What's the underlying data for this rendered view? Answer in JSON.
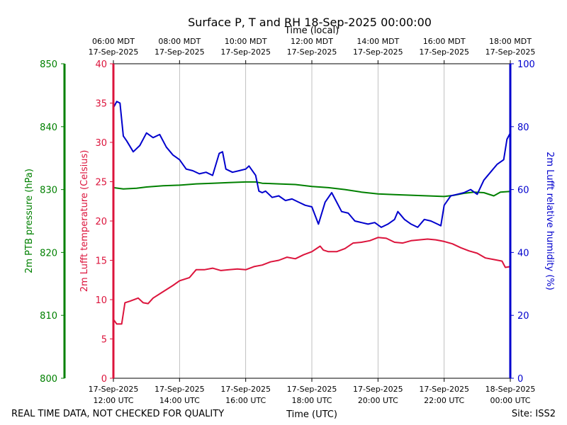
{
  "chart_data": {
    "type": "line",
    "title": "Surface P, T and RH 18-Sep-2025 00:00:00",
    "top_axis_label": "Time (local)",
    "bottom_axis_label": "Time (UTC)",
    "footer_left": "REAL TIME DATA, NOT CHECKED FOR QUALITY",
    "footer_right": "Site: ISS2",
    "x_range_hours_utc": [
      12,
      24
    ],
    "x_ticks": [
      {
        "hour": 12,
        "utc_date": "17-Sep-2025",
        "utc_time": "12:00 UTC",
        "local_time": "06:00 MDT",
        "local_date": "17-Sep-2025"
      },
      {
        "hour": 14,
        "utc_date": "17-Sep-2025",
        "utc_time": "14:00 UTC",
        "local_time": "08:00 MDT",
        "local_date": "17-Sep-2025"
      },
      {
        "hour": 16,
        "utc_date": "17-Sep-2025",
        "utc_time": "16:00 UTC",
        "local_time": "10:00 MDT",
        "local_date": "17-Sep-2025"
      },
      {
        "hour": 18,
        "utc_date": "17-Sep-2025",
        "utc_time": "18:00 UTC",
        "local_time": "12:00 MDT",
        "local_date": "17-Sep-2025"
      },
      {
        "hour": 20,
        "utc_date": "17-Sep-2025",
        "utc_time": "20:00 UTC",
        "local_time": "14:00 MDT",
        "local_date": "17-Sep-2025"
      },
      {
        "hour": 22,
        "utc_date": "17-Sep-2025",
        "utc_time": "22:00 UTC",
        "local_time": "16:00 MDT",
        "local_date": "17-Sep-2025"
      },
      {
        "hour": 24,
        "utc_date": "18-Sep-2025",
        "utc_time": "00:00 UTC",
        "local_time": "18:00 MDT",
        "local_date": "17-Sep-2025"
      }
    ],
    "axes": {
      "pressure": {
        "label": "2m PTB pressure (hPa)",
        "range": [
          800,
          850
        ],
        "ticks": [
          800,
          810,
          820,
          830,
          840,
          850
        ],
        "color": "#008000"
      },
      "temperature": {
        "label": "2m Lufft temperature (Celsius)",
        "range": [
          0,
          40
        ],
        "ticks": [
          0,
          5,
          10,
          15,
          20,
          25,
          30,
          35,
          40
        ],
        "color": "#dc143c"
      },
      "humidity": {
        "label": "2m Lufft relative humidity (%)",
        "range": [
          0,
          100
        ],
        "ticks": [
          0,
          20,
          40,
          60,
          80,
          100
        ],
        "color": "#0000cd"
      }
    },
    "series": [
      {
        "name": "2m PTB pressure",
        "axis": "pressure",
        "color": "#008000",
        "x": [
          12.0,
          12.3,
          12.7,
          13.0,
          13.5,
          14.0,
          14.5,
          15.0,
          15.5,
          16.0,
          16.3,
          16.5,
          17.0,
          17.5,
          18.0,
          18.5,
          19.0,
          19.5,
          20.0,
          20.5,
          21.0,
          21.5,
          22.0,
          22.3,
          22.6,
          22.9,
          23.2,
          23.5,
          23.7,
          24.0
        ],
        "values": [
          830.3,
          830.1,
          830.2,
          830.4,
          830.6,
          830.7,
          830.9,
          831.0,
          831.1,
          831.2,
          831.2,
          831.0,
          830.9,
          830.8,
          830.5,
          830.3,
          830.0,
          829.6,
          829.3,
          829.2,
          829.1,
          829.0,
          828.9,
          829.1,
          829.4,
          829.6,
          829.5,
          829.0,
          829.6,
          829.7
        ]
      },
      {
        "name": "2m Lufft temperature",
        "axis": "temperature",
        "color": "#dc143c",
        "x": [
          12.0,
          12.1,
          12.25,
          12.35,
          12.5,
          12.75,
          12.9,
          13.05,
          13.2,
          13.5,
          13.8,
          14.0,
          14.3,
          14.5,
          14.75,
          15.0,
          15.25,
          15.5,
          15.75,
          16.0,
          16.25,
          16.5,
          16.75,
          17.0,
          17.25,
          17.5,
          17.75,
          18.0,
          18.25,
          18.35,
          18.5,
          18.75,
          19.0,
          19.25,
          19.5,
          19.75,
          20.0,
          20.25,
          20.5,
          20.75,
          21.0,
          21.25,
          21.5,
          21.75,
          22.0,
          22.25,
          22.5,
          22.75,
          23.0,
          23.25,
          23.5,
          23.75,
          23.85,
          24.0
        ],
        "values": [
          7.5,
          6.9,
          6.9,
          9.6,
          9.8,
          10.2,
          9.6,
          9.5,
          10.2,
          11.0,
          11.8,
          12.4,
          12.8,
          13.8,
          13.8,
          14.0,
          13.7,
          13.8,
          13.9,
          13.8,
          14.2,
          14.4,
          14.8,
          15.0,
          15.4,
          15.2,
          15.7,
          16.1,
          16.8,
          16.3,
          16.1,
          16.1,
          16.5,
          17.2,
          17.3,
          17.5,
          17.9,
          17.8,
          17.3,
          17.2,
          17.5,
          17.6,
          17.7,
          17.6,
          17.4,
          17.1,
          16.6,
          16.2,
          15.9,
          15.3,
          15.1,
          14.9,
          14.1,
          14.2
        ]
      },
      {
        "name": "2m Lufft relative humidity",
        "axis": "humidity",
        "color": "#0000cd",
        "x": [
          12.0,
          12.1,
          12.2,
          12.3,
          12.4,
          12.6,
          12.8,
          13.0,
          13.2,
          13.4,
          13.6,
          13.8,
          14.0,
          14.2,
          14.4,
          14.6,
          14.8,
          15.0,
          15.2,
          15.3,
          15.4,
          15.6,
          15.8,
          16.0,
          16.1,
          16.3,
          16.4,
          16.5,
          16.6,
          16.8,
          17.0,
          17.2,
          17.4,
          17.6,
          17.8,
          18.0,
          18.2,
          18.4,
          18.6,
          18.7,
          18.9,
          19.1,
          19.3,
          19.5,
          19.7,
          19.9,
          20.1,
          20.3,
          20.5,
          20.6,
          20.8,
          21.0,
          21.2,
          21.4,
          21.6,
          21.8,
          21.9,
          22.0,
          22.2,
          22.4,
          22.6,
          22.8,
          23.0,
          23.2,
          23.4,
          23.6,
          23.8,
          23.9,
          24.0
        ],
        "values": [
          86.0,
          88.0,
          87.5,
          77.0,
          75.5,
          72.0,
          74.0,
          78.0,
          76.5,
          77.5,
          73.5,
          71.0,
          69.5,
          66.5,
          66.0,
          65.0,
          65.5,
          64.5,
          71.5,
          72.0,
          66.5,
          65.5,
          66.0,
          66.5,
          67.5,
          64.5,
          59.5,
          59.0,
          59.5,
          57.5,
          58.0,
          56.5,
          57.0,
          56.0,
          55.0,
          54.5,
          49.0,
          56.0,
          59.0,
          57.0,
          53.0,
          52.5,
          50.0,
          49.5,
          49.0,
          49.5,
          48.0,
          49.0,
          50.5,
          53.0,
          50.5,
          49.0,
          48.0,
          50.5,
          50.0,
          49.0,
          48.5,
          55.0,
          58.0,
          58.5,
          59.0,
          60.0,
          58.5,
          63.0,
          65.5,
          68.0,
          69.5,
          76.0,
          78.0
        ]
      }
    ]
  }
}
